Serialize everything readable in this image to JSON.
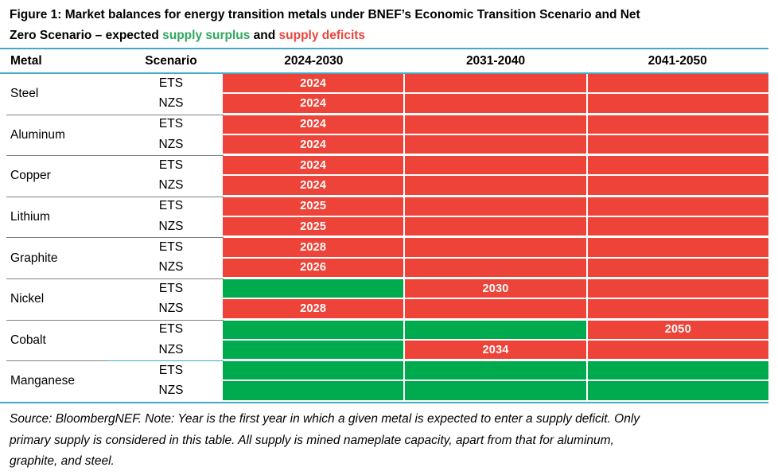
{
  "title": {
    "line1": "Figure 1: Market balances for energy transition metals under BNEF’s Economic Transition Scenario and Net",
    "line2_part1": "Zero Scenario – expected ",
    "line2_surplus": "supply surplus",
    "line2_part2": " and ",
    "line2_deficit": "supply deficits"
  },
  "colors": {
    "deficit": "#ED4338",
    "surplus": "#00AB50",
    "table_line_blue": "#44A8C8",
    "group_divider_gray": "#808080",
    "title_green": "#2EA95C",
    "title_red": "#E8463C",
    "year_label": "#FFFFFF"
  },
  "chart_data": {
    "type": "table",
    "title": "Figure 1: Market balances for energy transition metals under BNEF’s Economic Transition Scenario and Net Zero Scenario – expected supply surplus and supply deficits",
    "header_columns": [
      "Metal",
      "Scenario",
      "2024-2030",
      "2031-2040",
      "2041-2050"
    ],
    "period_columns": [
      "2024-2030",
      "2031-2040",
      "2041-2050"
    ],
    "legend": {
      "green_means": "supply surplus",
      "red_means": "supply deficit",
      "year_label_means": "first year in which the metal is expected to enter a supply deficit"
    },
    "groups": [
      {
        "metal": "Steel",
        "rows": [
          {
            "scenario": "ETS",
            "periods": [
              "deficit",
              "deficit",
              "deficit"
            ],
            "deficit_year": "2024"
          },
          {
            "scenario": "NZS",
            "periods": [
              "deficit",
              "deficit",
              "deficit"
            ],
            "deficit_year": "2024"
          }
        ]
      },
      {
        "metal": "Aluminum",
        "rows": [
          {
            "scenario": "ETS",
            "periods": [
              "deficit",
              "deficit",
              "deficit"
            ],
            "deficit_year": "2024"
          },
          {
            "scenario": "NZS",
            "periods": [
              "deficit",
              "deficit",
              "deficit"
            ],
            "deficit_year": "2024"
          }
        ]
      },
      {
        "metal": "Copper",
        "rows": [
          {
            "scenario": "ETS",
            "periods": [
              "deficit",
              "deficit",
              "deficit"
            ],
            "deficit_year": "2024"
          },
          {
            "scenario": "NZS",
            "periods": [
              "deficit",
              "deficit",
              "deficit"
            ],
            "deficit_year": "2024"
          }
        ]
      },
      {
        "metal": "Lithium",
        "rows": [
          {
            "scenario": "ETS",
            "periods": [
              "deficit",
              "deficit",
              "deficit"
            ],
            "deficit_year": "2025"
          },
          {
            "scenario": "NZS",
            "periods": [
              "deficit",
              "deficit",
              "deficit"
            ],
            "deficit_year": "2025"
          }
        ]
      },
      {
        "metal": "Graphite",
        "rows": [
          {
            "scenario": "ETS",
            "periods": [
              "deficit",
              "deficit",
              "deficit"
            ],
            "deficit_year": "2028"
          },
          {
            "scenario": "NZS",
            "periods": [
              "deficit",
              "deficit",
              "deficit"
            ],
            "deficit_year": "2026"
          }
        ]
      },
      {
        "metal": "Nickel",
        "rows": [
          {
            "scenario": "ETS",
            "periods": [
              "surplus",
              "deficit",
              "deficit"
            ],
            "deficit_year": "2030"
          },
          {
            "scenario": "NZS",
            "periods": [
              "deficit",
              "deficit",
              "deficit"
            ],
            "deficit_year": "2028"
          }
        ]
      },
      {
        "metal": "Cobalt",
        "rows": [
          {
            "scenario": "ETS",
            "periods": [
              "surplus",
              "surplus",
              "deficit"
            ],
            "deficit_year": "2050"
          },
          {
            "scenario": "NZS",
            "periods": [
              "surplus",
              "deficit",
              "deficit"
            ],
            "deficit_year": "2034"
          }
        ]
      },
      {
        "metal": "Manganese",
        "rows": [
          {
            "scenario": "ETS",
            "periods": [
              "surplus",
              "surplus",
              "surplus"
            ],
            "deficit_year": ""
          },
          {
            "scenario": "NZS",
            "periods": [
              "surplus",
              "surplus",
              "surplus"
            ],
            "deficit_year": ""
          }
        ]
      }
    ]
  },
  "source_note": {
    "line1": "Source: BloombergNEF. Note: Year is the first year in which a given metal is expected to enter a supply deficit. Only",
    "line2": "primary supply is considered in this table. All supply is mined nameplate capacity, apart from that for aluminum,",
    "line3": "graphite, and steel."
  }
}
